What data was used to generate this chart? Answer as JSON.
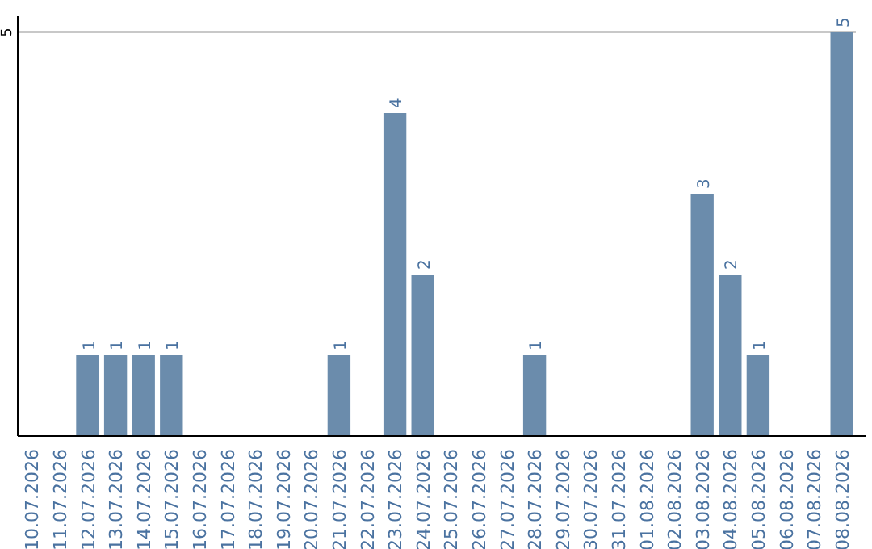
{
  "chart_data": {
    "type": "bar",
    "categories": [
      "10.07.2026",
      "11.07.2026",
      "12.07.2026",
      "13.07.2026",
      "14.07.2026",
      "15.07.2026",
      "16.07.2026",
      "17.07.2026",
      "18.07.2026",
      "19.07.2026",
      "20.07.2026",
      "21.07.2026",
      "22.07.2026",
      "23.07.2026",
      "24.07.2026",
      "25.07.2026",
      "26.07.2026",
      "27.07.2026",
      "28.07.2026",
      "29.07.2026",
      "30.07.2026",
      "31.07.2026",
      "01.08.2026",
      "02.08.2026",
      "03.08.2026",
      "04.08.2026",
      "05.08.2026",
      "06.08.2026",
      "07.08.2026",
      "08.08.2026"
    ],
    "values": [
      0,
      0,
      1,
      1,
      1,
      1,
      0,
      0,
      0,
      0,
      0,
      1,
      0,
      4,
      2,
      0,
      0,
      0,
      1,
      0,
      0,
      0,
      0,
      0,
      3,
      2,
      1,
      0,
      0,
      5
    ],
    "color": "#6b8cac",
    "ylim": [
      0,
      5.2
    ],
    "yticks": [
      5
    ],
    "grid": "y",
    "value_labels": [
      null,
      null,
      "1",
      "1",
      "1",
      "1",
      null,
      null,
      null,
      null,
      null,
      "1",
      null,
      "4",
      "2",
      null,
      null,
      null,
      "1",
      null,
      null,
      null,
      null,
      null,
      "3",
      "2",
      "1",
      null,
      null,
      "5"
    ]
  }
}
